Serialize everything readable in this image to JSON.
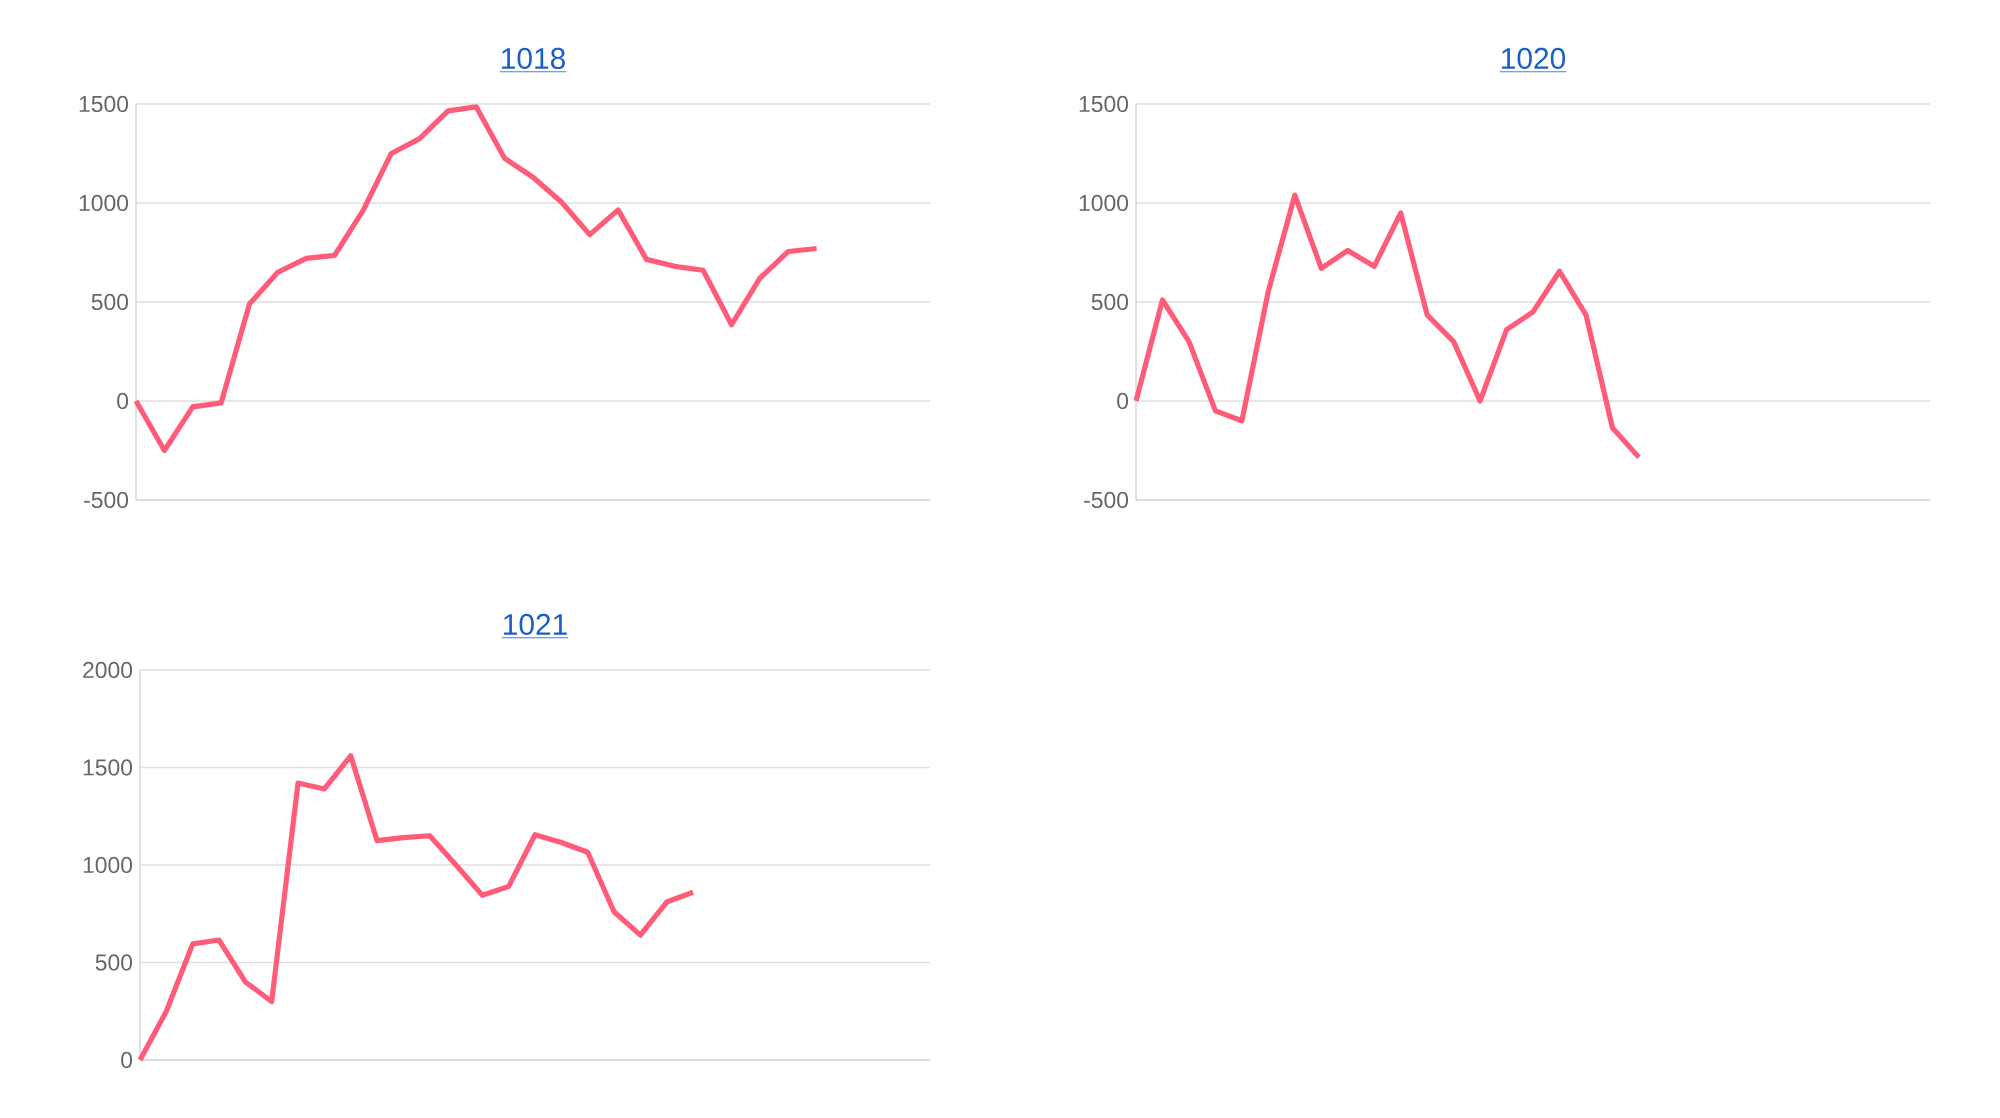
{
  "chart_data": [
    {
      "type": "line",
      "title": "1018",
      "categories": [
        null,
        null,
        null,
        null,
        null,
        null,
        null,
        null,
        null,
        null,
        null,
        null,
        null,
        null,
        null,
        null,
        null,
        null,
        null,
        null,
        null,
        null,
        null,
        null,
        null,
        null,
        null,
        null,
        null
      ],
      "series": [
        {
          "color": "#ff5c7a",
          "values": [
            0,
            -250,
            -30,
            -10,
            490,
            650,
            720,
            735,
            960,
            1250,
            1325,
            1465,
            1485,
            1225,
            1130,
            1005,
            840,
            965,
            715,
            680,
            660,
            385,
            620,
            755,
            770,
            null,
            null,
            null,
            null
          ]
        }
      ],
      "ylim": [
        -500,
        1500
      ],
      "yticks": [
        -500,
        0,
        500,
        1000,
        1500
      ],
      "grid": "y"
    },
    {
      "type": "line",
      "title": "1020",
      "categories": [
        null,
        null,
        null,
        null,
        null,
        null,
        null,
        null,
        null,
        null,
        null,
        null,
        null,
        null,
        null,
        null,
        null,
        null,
        null,
        null,
        null,
        null,
        null,
        null,
        null,
        null,
        null,
        null,
        null,
        null,
        null
      ],
      "series": [
        {
          "color": "#ff5c7a",
          "values": [
            0,
            510,
            300,
            -50,
            -100,
            555,
            1040,
            670,
            760,
            680,
            950,
            435,
            300,
            0,
            360,
            450,
            655,
            435,
            -135,
            -285,
            null,
            null,
            null,
            null,
            null,
            null,
            null,
            null,
            null,
            null,
            null
          ]
        }
      ],
      "ylim": [
        -500,
        1500
      ],
      "yticks": [
        -500,
        0,
        500,
        1000,
        1500
      ],
      "grid": "y"
    },
    {
      "type": "line",
      "title": "1021",
      "categories": [
        null,
        null,
        null,
        null,
        null,
        null,
        null,
        null,
        null,
        null,
        null,
        null,
        null,
        null,
        null,
        null,
        null,
        null,
        null,
        null,
        null,
        null,
        null,
        null,
        null,
        null,
        null,
        null,
        null,
        null,
        null
      ],
      "series": [
        {
          "color": "#ff5c7a",
          "values": [
            0,
            250,
            595,
            615,
            400,
            300,
            1420,
            1390,
            1560,
            1125,
            1140,
            1150,
            1000,
            845,
            890,
            1155,
            1115,
            1065,
            760,
            640,
            810,
            860,
            null,
            null,
            null,
            null,
            null,
            null,
            null,
            null,
            null
          ]
        }
      ],
      "ylim": [
        0,
        2000
      ],
      "yticks": [
        0,
        500,
        1000,
        1500,
        2000
      ],
      "grid": "y"
    }
  ]
}
